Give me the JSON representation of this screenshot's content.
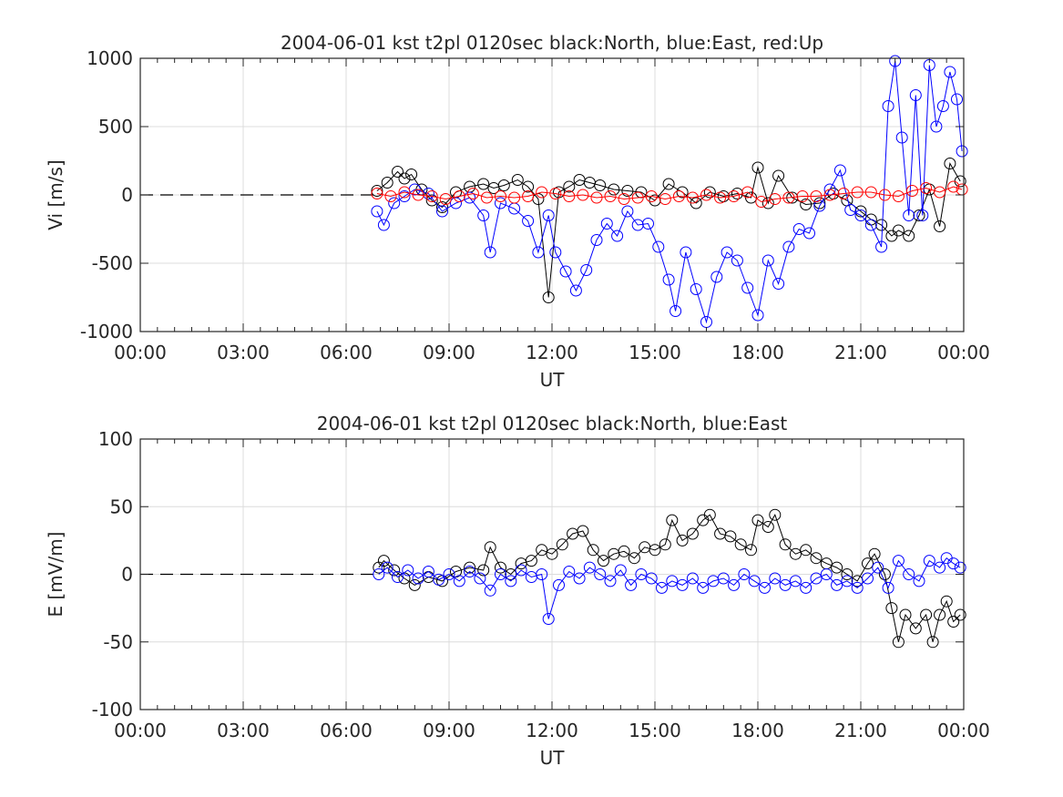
{
  "chart_data": [
    {
      "type": "scatter",
      "title": "2004-06-01 kst t2pl 0120sec black:North, blue:East, red:Up",
      "xlabel": "UT",
      "ylabel": "Vi [m/s]",
      "xlim": [
        0,
        24
      ],
      "ylim": [
        -1000,
        1000
      ],
      "grid": true,
      "x_tick_labels": [
        "00:00",
        "03:00",
        "06:00",
        "09:00",
        "12:00",
        "15:00",
        "18:00",
        "21:00",
        "00:00"
      ],
      "y_ticks": [
        -1000,
        -500,
        0,
        500,
        1000
      ],
      "y_tick_labels": [
        "-1000",
        "-500",
        "0",
        "500",
        "1000"
      ],
      "zero_line": {
        "style": "dashed",
        "from_hour": 0,
        "to_hour": 6.95,
        "value": 0
      },
      "marker": "open-circle",
      "series": [
        {
          "color": "#000000",
          "x": [
            6.9,
            7.2,
            7.5,
            7.7,
            7.9,
            8.2,
            8.5,
            8.8,
            9.2,
            9.6,
            10.0,
            10.3,
            10.6,
            11.0,
            11.3,
            11.6,
            11.9,
            12.2,
            12.5,
            12.8,
            13.1,
            13.4,
            13.8,
            14.2,
            14.6,
            15.0,
            15.4,
            15.8,
            16.2,
            16.6,
            17.0,
            17.4,
            17.8,
            18.0,
            18.3,
            18.6,
            19.0,
            19.4,
            19.8,
            20.2,
            20.6,
            21.0,
            21.3,
            21.6,
            21.9,
            22.1,
            22.4,
            22.7,
            23.0,
            23.3,
            23.6,
            23.9
          ],
          "y": [
            30,
            90,
            170,
            120,
            150,
            40,
            -40,
            -90,
            20,
            60,
            80,
            50,
            70,
            110,
            60,
            -30,
            -750,
            20,
            60,
            110,
            90,
            70,
            40,
            30,
            20,
            -40,
            80,
            20,
            -60,
            20,
            -10,
            10,
            -20,
            200,
            -60,
            140,
            -20,
            -70,
            -60,
            10,
            -40,
            -120,
            -180,
            -220,
            -300,
            -260,
            -300,
            -150,
            40,
            -230,
            230,
            100
          ]
        },
        {
          "color": "#0000ff",
          "x": [
            6.9,
            7.1,
            7.4,
            7.7,
            8.0,
            8.4,
            8.8,
            9.2,
            9.6,
            10.0,
            10.2,
            10.5,
            10.9,
            11.3,
            11.6,
            11.9,
            12.1,
            12.4,
            12.7,
            13.0,
            13.3,
            13.6,
            13.9,
            14.2,
            14.5,
            14.8,
            15.1,
            15.4,
            15.6,
            15.9,
            16.2,
            16.5,
            16.8,
            17.1,
            17.4,
            17.7,
            18.0,
            18.3,
            18.6,
            18.9,
            19.2,
            19.5,
            19.8,
            20.1,
            20.4,
            20.7,
            21.0,
            21.3,
            21.6,
            21.8,
            22.0,
            22.2,
            22.4,
            22.6,
            22.8,
            23.0,
            23.2,
            23.4,
            23.6,
            23.8,
            23.95
          ],
          "y": [
            -120,
            -220,
            -60,
            -10,
            40,
            10,
            -120,
            -60,
            -20,
            -150,
            -420,
            -60,
            -100,
            -190,
            -420,
            -150,
            -420,
            -560,
            -700,
            -550,
            -330,
            -210,
            -300,
            -120,
            -220,
            -210,
            -380,
            -620,
            -850,
            -420,
            -690,
            -930,
            -600,
            -420,
            -480,
            -680,
            -880,
            -480,
            -650,
            -380,
            -250,
            -280,
            -80,
            40,
            180,
            -110,
            -150,
            -220,
            -380,
            650,
            980,
            420,
            -150,
            730,
            -150,
            950,
            500,
            650,
            900,
            700,
            320
          ]
        },
        {
          "color": "#ff0000",
          "x": [
            6.9,
            7.3,
            7.7,
            8.1,
            8.5,
            8.9,
            9.3,
            9.7,
            10.1,
            10.5,
            10.9,
            11.3,
            11.7,
            12.1,
            12.5,
            12.9,
            13.3,
            13.7,
            14.1,
            14.5,
            14.9,
            15.3,
            15.7,
            16.1,
            16.5,
            16.9,
            17.3,
            17.7,
            18.1,
            18.5,
            18.9,
            19.3,
            19.7,
            20.1,
            20.5,
            20.9,
            21.3,
            21.7,
            22.1,
            22.5,
            22.9,
            23.3,
            23.7,
            23.95
          ],
          "y": [
            10,
            -10,
            20,
            0,
            -10,
            -30,
            -10,
            10,
            -20,
            -10,
            -20,
            -10,
            20,
            10,
            -10,
            0,
            -20,
            -10,
            -30,
            -20,
            -10,
            -30,
            -10,
            -20,
            0,
            -20,
            -10,
            20,
            -50,
            -30,
            -20,
            -10,
            -10,
            0,
            10,
            20,
            20,
            0,
            -10,
            30,
            50,
            20,
            60,
            40
          ]
        }
      ]
    },
    {
      "type": "scatter",
      "title": "2004-06-01 kst t2pl 0120sec black:North, blue:East",
      "xlabel": "UT",
      "ylabel": "E [mV/m]",
      "xlim": [
        0,
        24
      ],
      "ylim": [
        -100,
        100
      ],
      "grid": true,
      "x_tick_labels": [
        "00:00",
        "03:00",
        "06:00",
        "09:00",
        "12:00",
        "15:00",
        "18:00",
        "21:00",
        "00:00"
      ],
      "y_ticks": [
        -100,
        -50,
        0,
        50,
        100
      ],
      "y_tick_labels": [
        "-100",
        "-50",
        "0",
        "50",
        "100"
      ],
      "zero_line": {
        "style": "dashed",
        "from_hour": 0,
        "to_hour": 6.95,
        "value": 0
      },
      "marker": "open-circle",
      "series": [
        {
          "color": "#000000",
          "x": [
            6.95,
            7.1,
            7.4,
            7.7,
            8.0,
            8.4,
            8.8,
            9.2,
            9.6,
            10.0,
            10.2,
            10.5,
            10.8,
            11.1,
            11.4,
            11.7,
            12.0,
            12.3,
            12.6,
            12.9,
            13.2,
            13.5,
            13.8,
            14.1,
            14.4,
            14.7,
            15.0,
            15.3,
            15.5,
            15.8,
            16.1,
            16.4,
            16.6,
            16.9,
            17.2,
            17.5,
            17.8,
            18.0,
            18.3,
            18.5,
            18.8,
            19.1,
            19.4,
            19.7,
            20.0,
            20.3,
            20.6,
            20.9,
            21.2,
            21.4,
            21.7,
            21.9,
            22.1,
            22.3,
            22.6,
            22.9,
            23.1,
            23.3,
            23.5,
            23.7,
            23.9
          ],
          "y": [
            5,
            10,
            3,
            -3,
            -8,
            -2,
            -5,
            2,
            5,
            3,
            20,
            5,
            0,
            8,
            10,
            18,
            15,
            22,
            30,
            32,
            18,
            10,
            15,
            17,
            12,
            20,
            18,
            22,
            40,
            25,
            30,
            40,
            44,
            30,
            28,
            22,
            18,
            40,
            35,
            44,
            22,
            15,
            18,
            12,
            8,
            5,
            0,
            -5,
            8,
            15,
            0,
            -25,
            -50,
            -30,
            -40,
            -30,
            -50,
            -30,
            -20,
            -35,
            -30
          ]
        },
        {
          "color": "#0000ff",
          "x": [
            6.95,
            7.2,
            7.5,
            7.8,
            8.1,
            8.4,
            8.7,
            9.0,
            9.3,
            9.6,
            9.9,
            10.2,
            10.5,
            10.8,
            11.1,
            11.4,
            11.7,
            11.9,
            12.2,
            12.5,
            12.8,
            13.1,
            13.4,
            13.7,
            14.0,
            14.3,
            14.6,
            14.9,
            15.2,
            15.5,
            15.8,
            16.1,
            16.4,
            16.7,
            17.0,
            17.3,
            17.6,
            17.9,
            18.2,
            18.5,
            18.8,
            19.1,
            19.4,
            19.7,
            20.0,
            20.3,
            20.6,
            20.9,
            21.2,
            21.5,
            21.8,
            22.1,
            22.4,
            22.7,
            23.0,
            23.3,
            23.5,
            23.7,
            23.9
          ],
          "y": [
            0,
            5,
            -2,
            3,
            -3,
            2,
            -4,
            0,
            -5,
            2,
            -3,
            -12,
            0,
            -5,
            3,
            -2,
            0,
            -33,
            -8,
            2,
            -3,
            5,
            0,
            -5,
            3,
            -8,
            0,
            -3,
            -10,
            -5,
            -8,
            -3,
            -10,
            -5,
            -3,
            -8,
            0,
            -5,
            -10,
            -3,
            -8,
            -5,
            -10,
            -3,
            0,
            -8,
            -5,
            -10,
            -3,
            5,
            -10,
            10,
            0,
            -5,
            10,
            5,
            12,
            8,
            5
          ]
        }
      ]
    }
  ]
}
